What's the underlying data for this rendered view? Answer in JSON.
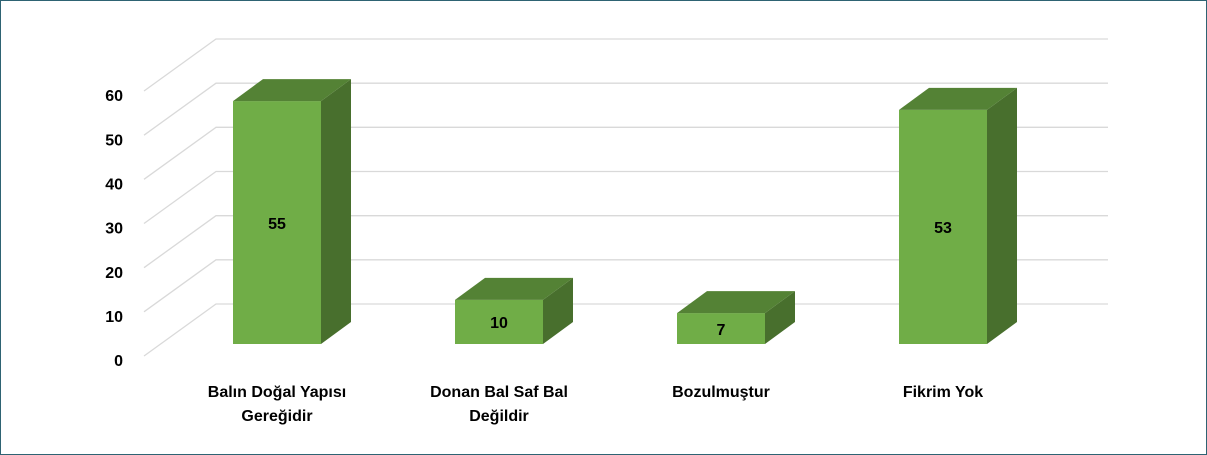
{
  "chart_data": {
    "type": "bar3d",
    "categories": [
      "Balın Doğal Yapısı Gereğidir",
      "Donan Bal Saf Bal Değildir",
      "Bozulmuştur",
      "Fikrim Yok"
    ],
    "values": [
      55,
      10,
      7,
      53
    ],
    "color": "#70ad47",
    "ylim": [
      0,
      60
    ],
    "yticks": [
      0,
      10,
      20,
      30,
      40,
      50,
      60
    ],
    "grid": true
  }
}
